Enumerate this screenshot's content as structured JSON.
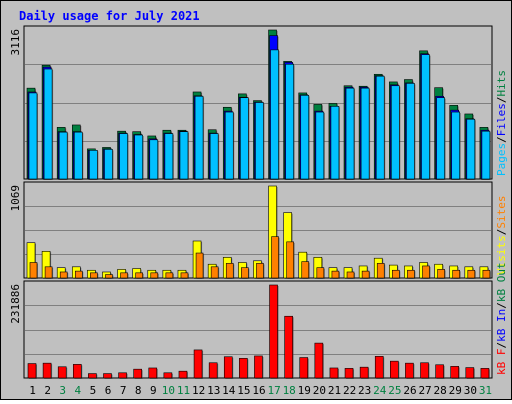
{
  "title": "Daily usage for July 2021",
  "colors": {
    "background": "#c0c0c0",
    "hits": "#008040",
    "files": "#0000ff",
    "pages": "#00c0ff",
    "visits": "#ffff00",
    "sites": "#ff8000",
    "kbin": "#ff0000",
    "kbout": "#ff0000",
    "weekend_label": "#008040",
    "title": "#0000ff"
  },
  "panels": {
    "top": {
      "max_label": "3116",
      "legend": [
        {
          "text": "Pages",
          "key": "pages"
        },
        {
          "text": "/",
          "key": "sep"
        },
        {
          "text": "Files",
          "key": "files"
        },
        {
          "text": "/",
          "key": "sep"
        },
        {
          "text": "Hits",
          "key": "hits"
        }
      ]
    },
    "middle": {
      "max_label": "1069",
      "legend": [
        {
          "text": "Visits",
          "key": "visits"
        },
        {
          "text": "/",
          "key": "sep"
        },
        {
          "text": "Sites",
          "key": "sites"
        }
      ]
    },
    "bottom": {
      "max_label": "231886",
      "legend": [
        {
          "text": "kB F",
          "key": "kbin"
        },
        {
          "text": "/",
          "key": "sep"
        },
        {
          "text": "kB In",
          "key": "files"
        },
        {
          "text": "/",
          "key": "sep"
        },
        {
          "text": "kB Out",
          "key": "hits"
        }
      ]
    }
  },
  "chart_data": {
    "type": "bar",
    "categories": [
      "1",
      "2",
      "3",
      "4",
      "5",
      "6",
      "7",
      "8",
      "9",
      "10",
      "11",
      "12",
      "13",
      "14",
      "15",
      "16",
      "17",
      "18",
      "19",
      "20",
      "21",
      "22",
      "23",
      "24",
      "25",
      "26",
      "27",
      "28",
      "29",
      "30",
      "31"
    ],
    "weekend_days": [
      "3",
      "4",
      "10",
      "11",
      "17",
      "18",
      "24",
      "25",
      "31"
    ],
    "series": [
      {
        "name": "Hits",
        "panel": "top",
        "values": [
          1900,
          2380,
          1080,
          1130,
          630,
          660,
          1000,
          990,
          900,
          1020,
          1020,
          1820,
          1030,
          1500,
          1780,
          1640,
          3116,
          2460,
          1800,
          1560,
          1580,
          1950,
          1940,
          2190,
          2030,
          2080,
          2680,
          1910,
          1540,
          1360,
          1080
        ]
      },
      {
        "name": "Files",
        "panel": "top",
        "values": [
          1820,
          2340,
          990,
          990,
          600,
          630,
          960,
          930,
          840,
          960,
          1000,
          1740,
          960,
          1420,
          1710,
          1610,
          3000,
          2440,
          1760,
          1420,
          1520,
          1920,
          1920,
          2160,
          1970,
          2010,
          2620,
          1730,
          1440,
          1260,
          1020
        ]
      },
      {
        "name": "Pages",
        "panel": "top",
        "values": [
          1800,
          2300,
          980,
          980,
          600,
          620,
          950,
          920,
          820,
          950,
          990,
          1730,
          950,
          1400,
          1700,
          1600,
          2700,
          2400,
          1750,
          1400,
          1520,
          1900,
          1900,
          2150,
          1950,
          2000,
          2600,
          1700,
          1400,
          1250,
          1000
        ]
      },
      {
        "name": "Visits",
        "panel": "middle",
        "values": [
          410,
          310,
          120,
          130,
          90,
          70,
          100,
          110,
          90,
          90,
          90,
          430,
          160,
          240,
          180,
          200,
          1069,
          760,
          300,
          240,
          120,
          120,
          140,
          230,
          150,
          140,
          180,
          160,
          140,
          130,
          130
        ]
      },
      {
        "name": "Sites",
        "panel": "middle",
        "values": [
          180,
          130,
          70,
          80,
          60,
          40,
          60,
          60,
          60,
          60,
          60,
          290,
          130,
          170,
          120,
          170,
          480,
          420,
          190,
          120,
          80,
          70,
          80,
          170,
          90,
          90,
          140,
          100,
          90,
          90,
          90
        ]
      },
      {
        "name": "kB F",
        "panel": "bottom",
        "values": [
          36000,
          37000,
          28000,
          34000,
          11000,
          11000,
          13000,
          22000,
          25000,
          13000,
          17000,
          70000,
          38000,
          53000,
          49000,
          55000,
          231886,
          154000,
          51000,
          87000,
          25000,
          24000,
          27000,
          54000,
          42000,
          37000,
          38000,
          33000,
          29000,
          26000,
          24000
        ]
      }
    ],
    "ylim": {
      "top": [
        0,
        3116
      ],
      "middle": [
        0,
        1069
      ],
      "bottom": [
        0,
        231886
      ]
    }
  }
}
